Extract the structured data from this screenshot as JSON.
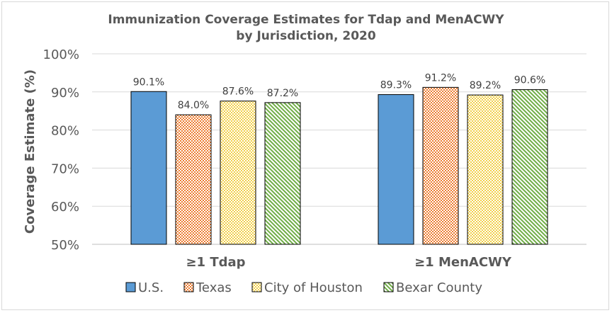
{
  "chart_data": {
    "type": "bar",
    "title_line1": "Immunization Coverage Estimates for Tdap and MenACWY",
    "title_line2": "by Jurisdiction, 2020",
    "ylabel": "Coverage Estimate (%)",
    "ylim": [
      50,
      100
    ],
    "yticks": [
      "50%",
      "60%",
      "70%",
      "80%",
      "90%",
      "100%"
    ],
    "grid": true,
    "legend_position": "bottom",
    "categories": [
      "≥1 Tdap",
      "≥1 MenACWY"
    ],
    "series": [
      {
        "name": "U.S.",
        "values": [
          90.1,
          89.3
        ],
        "labels": [
          "90.1%",
          "89.3%"
        ],
        "color": "#5b9bd5",
        "pattern": "solid"
      },
      {
        "name": "Texas",
        "values": [
          84.0,
          91.2
        ],
        "labels": [
          "84.0%",
          "91.2%"
        ],
        "color": "#ed7d31",
        "pattern": "checker"
      },
      {
        "name": "City of Houston",
        "values": [
          87.6,
          89.2
        ],
        "labels": [
          "87.6%",
          "89.2%"
        ],
        "color": "#ffd966",
        "pattern": "checker"
      },
      {
        "name": "Bexar County",
        "values": [
          87.2,
          90.6
        ],
        "labels": [
          "87.2%",
          "90.6%"
        ],
        "color": "#70ad47",
        "pattern": "diagonal"
      }
    ]
  }
}
